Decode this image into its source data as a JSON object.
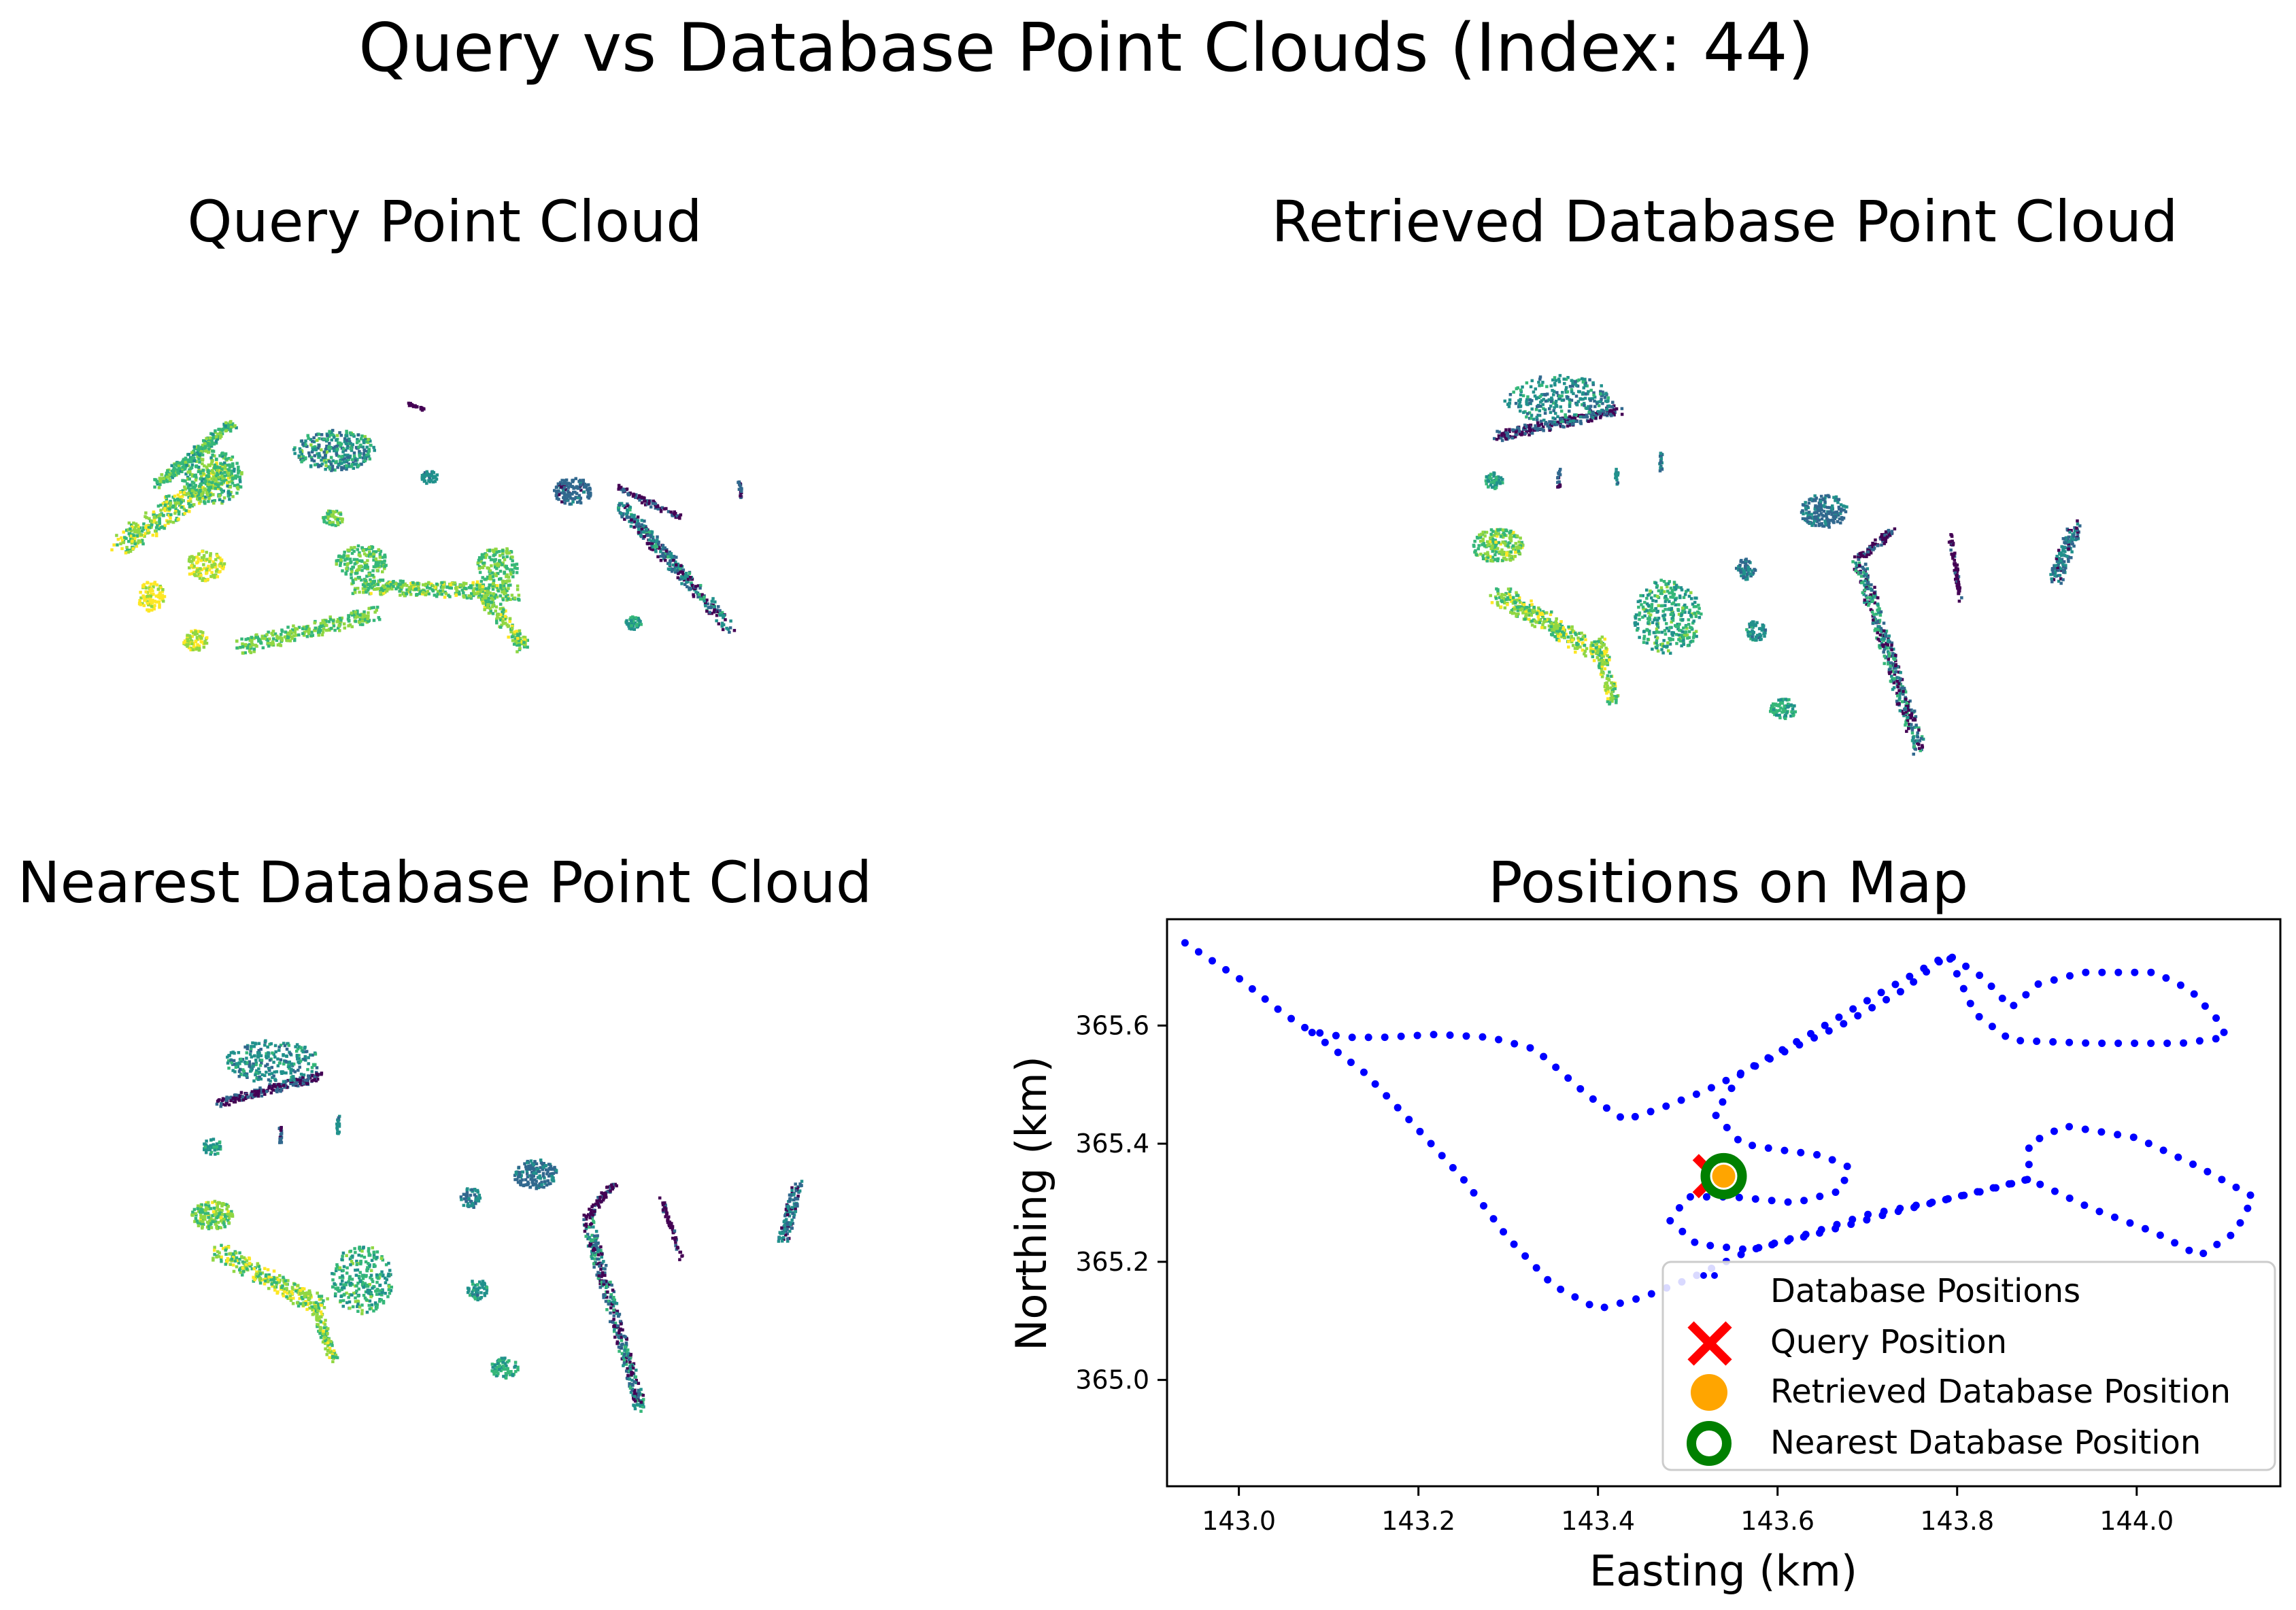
{
  "figure": {
    "title": "Query vs Database Point Clouds (Index: 44)",
    "colormap": [
      "#440154",
      "#31688e",
      "#21918c",
      "#35b779",
      "#90d743",
      "#fde725"
    ]
  },
  "panels": {
    "query_title": "Query Point Cloud",
    "retrieved_title": "Retrieved Database Point Cloud",
    "nearest_title": "Nearest Database Point Cloud",
    "map_title": "Positions on Map"
  },
  "chart_data": {
    "type": "scatter",
    "title": "Positions on Map",
    "xlabel": "Easting (km)",
    "ylabel": "Northing (km)",
    "xlim": [
      142.92,
      144.16
    ],
    "ylim": [
      364.82,
      365.78
    ],
    "xticks": [
      143.0,
      143.2,
      143.4,
      143.6,
      143.8,
      144.0
    ],
    "xtick_labels": [
      "143.0",
      "143.2",
      "143.4",
      "143.6",
      "143.8",
      "144.0"
    ],
    "yticks": [
      365.0,
      365.2,
      365.4,
      365.6
    ],
    "ytick_labels": [
      "365.0",
      "365.2",
      "365.4",
      "365.6"
    ],
    "grid": false,
    "legend_position": "lower-right",
    "series": [
      {
        "name": "Database Positions",
        "color": "#0000ff",
        "marker": "dot",
        "trajectory_vertices": [
          [
            142.94,
            365.74
          ],
          [
            143.0,
            365.68
          ],
          [
            143.05,
            365.62
          ],
          [
            143.08,
            365.59
          ],
          [
            143.12,
            365.58
          ],
          [
            143.16,
            365.58
          ],
          [
            143.22,
            365.585
          ],
          [
            143.28,
            365.58
          ],
          [
            143.33,
            365.56
          ],
          [
            143.36,
            365.52
          ],
          [
            143.39,
            365.48
          ],
          [
            143.43,
            365.44
          ],
          [
            143.47,
            365.46
          ],
          [
            143.52,
            365.49
          ],
          [
            143.6,
            365.55
          ],
          [
            143.67,
            365.6
          ],
          [
            143.74,
            365.66
          ],
          [
            143.79,
            365.72
          ],
          [
            143.83,
            365.68
          ],
          [
            143.86,
            365.63
          ],
          [
            143.89,
            365.67
          ],
          [
            143.94,
            365.69
          ],
          [
            144.02,
            365.69
          ],
          [
            144.06,
            365.66
          ],
          [
            144.09,
            365.61
          ],
          [
            144.1,
            365.58
          ],
          [
            144.05,
            365.57
          ],
          [
            143.95,
            365.57
          ],
          [
            143.86,
            365.575
          ],
          [
            143.82,
            365.62
          ],
          [
            143.79,
            365.72
          ],
          [
            143.72,
            365.66
          ],
          [
            143.63,
            365.58
          ],
          [
            143.56,
            365.52
          ],
          [
            143.53,
            365.45
          ],
          [
            143.56,
            365.4
          ],
          [
            143.6,
            365.39
          ],
          [
            143.65,
            365.38
          ],
          [
            143.68,
            365.36
          ],
          [
            143.67,
            365.32
          ],
          [
            143.62,
            365.3
          ],
          [
            143.55,
            365.31
          ],
          [
            143.5,
            365.31
          ],
          [
            143.48,
            365.27
          ],
          [
            143.51,
            365.23
          ],
          [
            143.57,
            365.22
          ],
          [
            143.64,
            365.25
          ],
          [
            143.7,
            365.28
          ],
          [
            143.77,
            365.3
          ],
          [
            143.83,
            365.32
          ],
          [
            143.88,
            365.34
          ],
          [
            143.88,
            365.4
          ],
          [
            143.92,
            365.43
          ],
          [
            144.0,
            365.41
          ],
          [
            144.07,
            365.36
          ],
          [
            144.13,
            365.31
          ],
          [
            144.11,
            365.25
          ],
          [
            144.07,
            365.21
          ],
          [
            144.02,
            365.25
          ],
          [
            143.95,
            365.29
          ],
          [
            143.88,
            365.34
          ],
          [
            143.8,
            365.31
          ],
          [
            143.72,
            365.28
          ],
          [
            143.65,
            365.25
          ],
          [
            143.57,
            365.22
          ],
          [
            143.5,
            365.17
          ],
          [
            143.45,
            365.14
          ],
          [
            143.4,
            365.12
          ],
          [
            143.35,
            365.16
          ],
          [
            143.3,
            365.24
          ],
          [
            143.25,
            365.34
          ],
          [
            143.19,
            365.44
          ],
          [
            143.14,
            365.52
          ],
          [
            143.08,
            365.59
          ]
        ]
      },
      {
        "name": "Query Position",
        "color": "#ff0000",
        "marker": "x",
        "x": 143.53,
        "y": 365.345
      },
      {
        "name": "Retrieved Database Position",
        "color": "#ffa500",
        "marker": "o",
        "x": 143.54,
        "y": 365.345
      },
      {
        "name": "Nearest Database Position",
        "color": "#008000",
        "marker": "ring",
        "x": 143.54,
        "y": 365.345
      }
    ]
  }
}
